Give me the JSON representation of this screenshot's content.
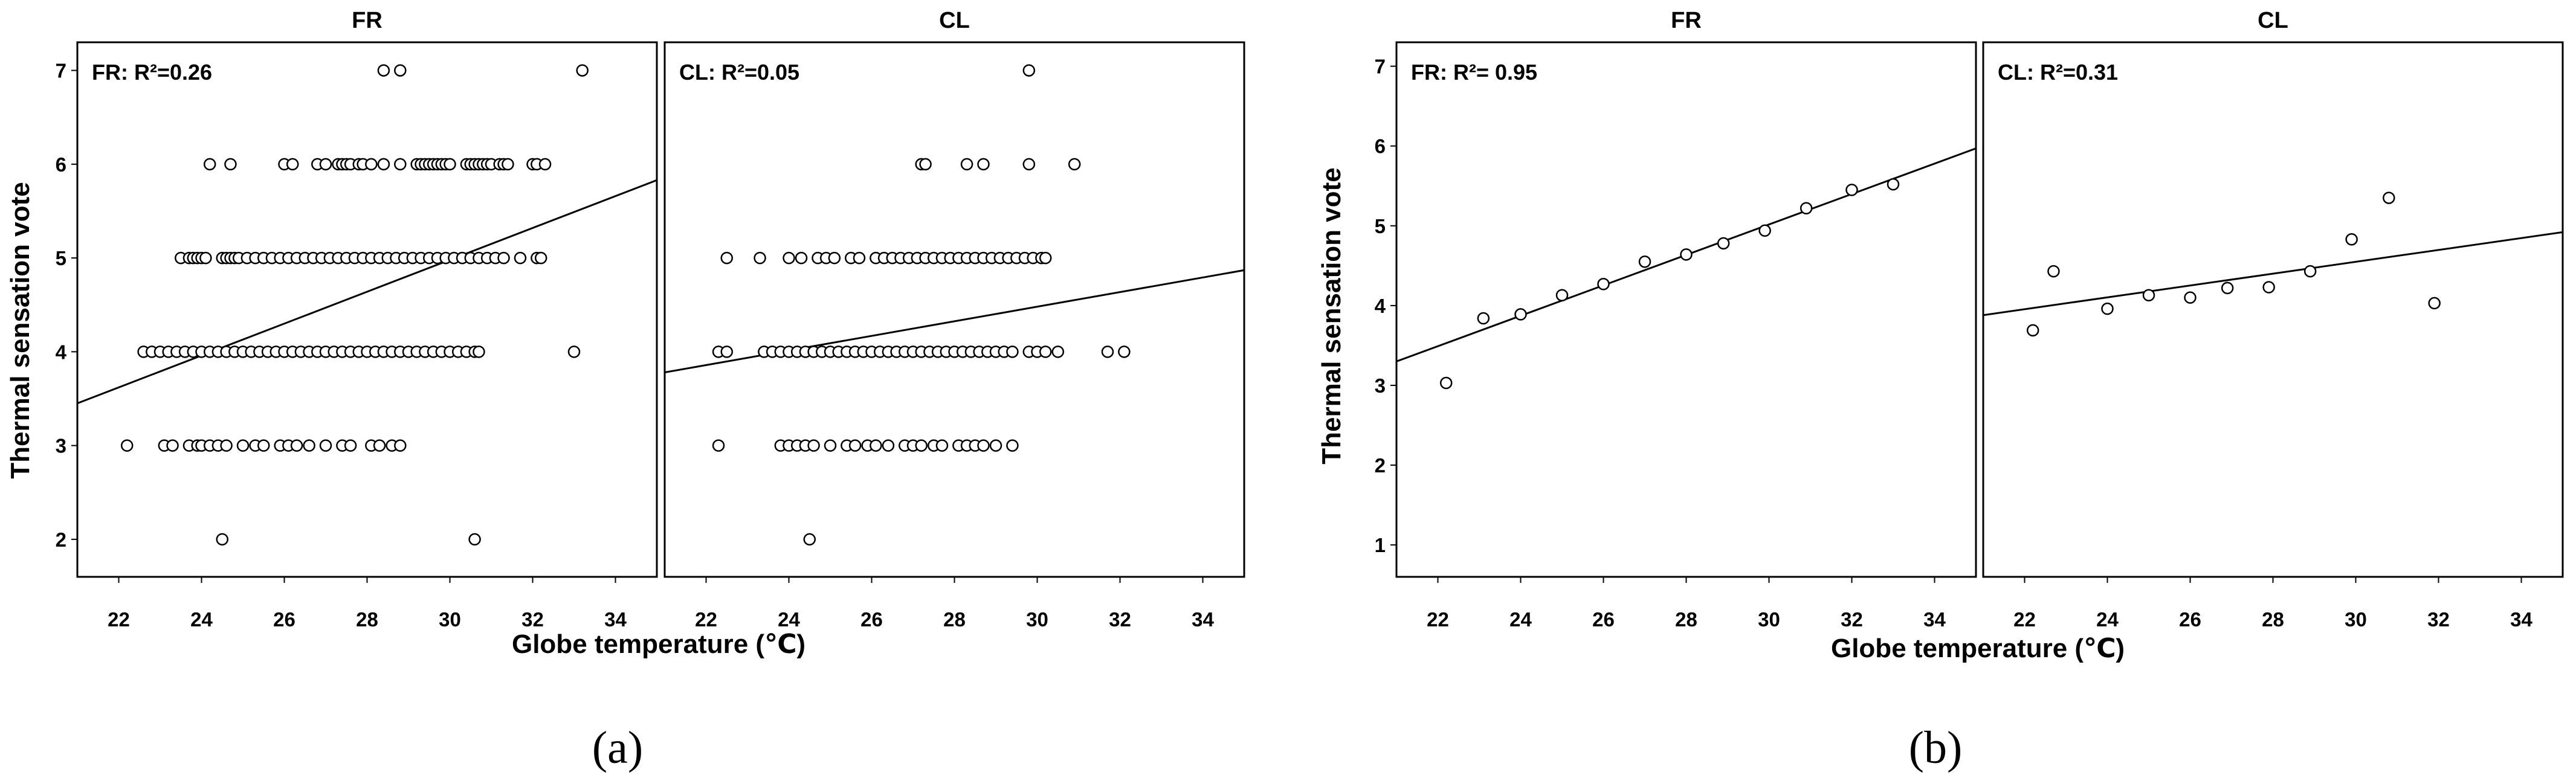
{
  "figure": {
    "caption_a": "(a)",
    "caption_b": "(b)"
  },
  "chart_data": [
    {
      "id": "a",
      "type": "scatter",
      "title": "FR",
      "annotation": "FR: R²=0.26",
      "xlabel": "Globe temperature (℃)",
      "ylabel": "Thermal sensation vote",
      "xlim": [
        21,
        35
      ],
      "ylim": [
        1.6,
        7.3
      ],
      "xticks": [
        "22",
        "24",
        "26",
        "28",
        "30",
        "32",
        "34"
      ],
      "yticks": [
        "2",
        "3",
        "4",
        "5",
        "6",
        "7"
      ],
      "points": [
        [
          28.4,
          7
        ],
        [
          28.8,
          7
        ],
        [
          24.2,
          6
        ],
        [
          24.7,
          6
        ],
        [
          26,
          6
        ],
        [
          26.2,
          6
        ],
        [
          26.8,
          6
        ],
        [
          27,
          6
        ],
        [
          27.3,
          6
        ],
        [
          27.4,
          6
        ],
        [
          27.5,
          6
        ],
        [
          27.6,
          6
        ],
        [
          27.8,
          6
        ],
        [
          27.9,
          6
        ],
        [
          28.1,
          6
        ],
        [
          28.4,
          6
        ],
        [
          28.8,
          6
        ],
        [
          29.2,
          6
        ],
        [
          29.3,
          6
        ],
        [
          29.4,
          6
        ],
        [
          29.5,
          6
        ],
        [
          29.6,
          6
        ],
        [
          29.7,
          6
        ],
        [
          29.8,
          6
        ],
        [
          29.9,
          6
        ],
        [
          30.0,
          6
        ],
        [
          30.4,
          6
        ],
        [
          30.5,
          6
        ],
        [
          30.6,
          6
        ],
        [
          30.7,
          6
        ],
        [
          30.8,
          6
        ],
        [
          30.9,
          6
        ],
        [
          31.0,
          6
        ],
        [
          31.2,
          6
        ],
        [
          31.3,
          6
        ],
        [
          31.4,
          6
        ],
        [
          32.0,
          6
        ],
        [
          32.1,
          6
        ],
        [
          32.3,
          6
        ],
        [
          23.5,
          5
        ],
        [
          23.7,
          5
        ],
        [
          23.8,
          5
        ],
        [
          23.9,
          5
        ],
        [
          24.0,
          5
        ],
        [
          24.1,
          5
        ],
        [
          24.5,
          5
        ],
        [
          24.6,
          5
        ],
        [
          24.7,
          5
        ],
        [
          24.8,
          5
        ],
        [
          24.9,
          5
        ],
        [
          25.1,
          5
        ],
        [
          25.3,
          5
        ],
        [
          25.5,
          5
        ],
        [
          25.7,
          5
        ],
        [
          25.9,
          5
        ],
        [
          26.1,
          5
        ],
        [
          26.3,
          5
        ],
        [
          26.5,
          5
        ],
        [
          26.7,
          5
        ],
        [
          26.9,
          5
        ],
        [
          27.1,
          5
        ],
        [
          27.3,
          5
        ],
        [
          27.5,
          5
        ],
        [
          27.7,
          5
        ],
        [
          27.9,
          5
        ],
        [
          28.1,
          5
        ],
        [
          28.3,
          5
        ],
        [
          28.5,
          5
        ],
        [
          28.7,
          5
        ],
        [
          28.9,
          5
        ],
        [
          29.1,
          5
        ],
        [
          29.3,
          5
        ],
        [
          29.5,
          5
        ],
        [
          29.7,
          5
        ],
        [
          29.9,
          5
        ],
        [
          30.1,
          5
        ],
        [
          30.3,
          5
        ],
        [
          30.5,
          5
        ],
        [
          30.7,
          5
        ],
        [
          30.9,
          5
        ],
        [
          31.1,
          5
        ],
        [
          31.3,
          5
        ],
        [
          31.7,
          5
        ],
        [
          32.1,
          5
        ],
        [
          32.2,
          5
        ],
        [
          22.6,
          4
        ],
        [
          22.8,
          4
        ],
        [
          23.0,
          4
        ],
        [
          23.2,
          4
        ],
        [
          23.4,
          4
        ],
        [
          23.6,
          4
        ],
        [
          23.8,
          4
        ],
        [
          24.0,
          4
        ],
        [
          24.2,
          4
        ],
        [
          24.4,
          4
        ],
        [
          24.6,
          4
        ],
        [
          24.8,
          4
        ],
        [
          25.0,
          4
        ],
        [
          25.2,
          4
        ],
        [
          25.4,
          4
        ],
        [
          25.6,
          4
        ],
        [
          25.8,
          4
        ],
        [
          26.0,
          4
        ],
        [
          26.2,
          4
        ],
        [
          26.4,
          4
        ],
        [
          26.6,
          4
        ],
        [
          26.8,
          4
        ],
        [
          27.0,
          4
        ],
        [
          27.2,
          4
        ],
        [
          27.4,
          4
        ],
        [
          27.6,
          4
        ],
        [
          27.8,
          4
        ],
        [
          28.0,
          4
        ],
        [
          28.2,
          4
        ],
        [
          28.4,
          4
        ],
        [
          28.6,
          4
        ],
        [
          28.8,
          4
        ],
        [
          29.0,
          4
        ],
        [
          29.2,
          4
        ],
        [
          29.4,
          4
        ],
        [
          29.6,
          4
        ],
        [
          29.8,
          4
        ],
        [
          30.0,
          4
        ],
        [
          30.2,
          4
        ],
        [
          30.4,
          4
        ],
        [
          30.6,
          4
        ],
        [
          30.7,
          4
        ],
        [
          33.0,
          4
        ],
        [
          22.2,
          3
        ],
        [
          23.1,
          3
        ],
        [
          23.3,
          3
        ],
        [
          23.7,
          3
        ],
        [
          23.9,
          3
        ],
        [
          24.0,
          3
        ],
        [
          24.2,
          3
        ],
        [
          24.4,
          3
        ],
        [
          24.6,
          3
        ],
        [
          25.0,
          3
        ],
        [
          25.3,
          3
        ],
        [
          25.5,
          3
        ],
        [
          25.9,
          3
        ],
        [
          26.1,
          3
        ],
        [
          26.3,
          3
        ],
        [
          26.6,
          3
        ],
        [
          27.0,
          3
        ],
        [
          27.4,
          3
        ],
        [
          27.6,
          3
        ],
        [
          28.1,
          3
        ],
        [
          28.3,
          3
        ],
        [
          28.6,
          3
        ],
        [
          28.8,
          3
        ],
        [
          24.5,
          2
        ],
        [
          30.6,
          2
        ],
        [
          33.2,
          7
        ]
      ],
      "fit": {
        "x": [
          21,
          35
        ],
        "y": [
          3.45,
          5.83
        ]
      }
    },
    {
      "id": "a",
      "type": "scatter",
      "title": "CL",
      "annotation": "CL: R²=0.05",
      "xlabel": "Globe temperature (℃)",
      "ylabel": "Thermal sensation vote",
      "xlim": [
        21,
        35
      ],
      "ylim": [
        1.6,
        7.3
      ],
      "xticks": [
        "22",
        "24",
        "26",
        "28",
        "30",
        "32",
        "34"
      ],
      "yticks": [
        "2",
        "3",
        "4",
        "5",
        "6",
        "7"
      ],
      "points": [
        [
          29.8,
          7
        ],
        [
          27.2,
          6
        ],
        [
          27.3,
          6
        ],
        [
          28.3,
          6
        ],
        [
          28.7,
          6
        ],
        [
          29.8,
          6
        ],
        [
          30.9,
          6
        ],
        [
          22.5,
          5
        ],
        [
          23.3,
          5
        ],
        [
          24.0,
          5
        ],
        [
          24.3,
          5
        ],
        [
          24.7,
          5
        ],
        [
          24.9,
          5
        ],
        [
          25.1,
          5
        ],
        [
          25.5,
          5
        ],
        [
          25.7,
          5
        ],
        [
          26.1,
          5
        ],
        [
          26.3,
          5
        ],
        [
          26.5,
          5
        ],
        [
          26.7,
          5
        ],
        [
          26.9,
          5
        ],
        [
          27.1,
          5
        ],
        [
          27.3,
          5
        ],
        [
          27.5,
          5
        ],
        [
          27.7,
          5
        ],
        [
          27.9,
          5
        ],
        [
          28.1,
          5
        ],
        [
          28.3,
          5
        ],
        [
          28.5,
          5
        ],
        [
          28.7,
          5
        ],
        [
          28.9,
          5
        ],
        [
          29.1,
          5
        ],
        [
          29.3,
          5
        ],
        [
          29.5,
          5
        ],
        [
          29.7,
          5
        ],
        [
          29.9,
          5
        ],
        [
          30.1,
          5
        ],
        [
          30.2,
          5
        ],
        [
          22.3,
          4
        ],
        [
          22.5,
          4
        ],
        [
          23.4,
          4
        ],
        [
          23.6,
          4
        ],
        [
          23.8,
          4
        ],
        [
          24.0,
          4
        ],
        [
          24.2,
          4
        ],
        [
          24.4,
          4
        ],
        [
          24.6,
          4
        ],
        [
          24.8,
          4
        ],
        [
          25.0,
          4
        ],
        [
          25.2,
          4
        ],
        [
          25.4,
          4
        ],
        [
          25.6,
          4
        ],
        [
          25.8,
          4
        ],
        [
          26.0,
          4
        ],
        [
          26.2,
          4
        ],
        [
          26.4,
          4
        ],
        [
          26.6,
          4
        ],
        [
          26.8,
          4
        ],
        [
          27.0,
          4
        ],
        [
          27.2,
          4
        ],
        [
          27.4,
          4
        ],
        [
          27.6,
          4
        ],
        [
          27.8,
          4
        ],
        [
          28.0,
          4
        ],
        [
          28.2,
          4
        ],
        [
          28.4,
          4
        ],
        [
          28.6,
          4
        ],
        [
          28.8,
          4
        ],
        [
          29.0,
          4
        ],
        [
          29.2,
          4
        ],
        [
          29.4,
          4
        ],
        [
          29.8,
          4
        ],
        [
          30.0,
          4
        ],
        [
          30.2,
          4
        ],
        [
          30.5,
          4
        ],
        [
          31.7,
          4
        ],
        [
          32.1,
          4
        ],
        [
          22.3,
          3
        ],
        [
          23.8,
          3
        ],
        [
          24.0,
          3
        ],
        [
          24.2,
          3
        ],
        [
          24.4,
          3
        ],
        [
          24.6,
          3
        ],
        [
          25.0,
          3
        ],
        [
          25.4,
          3
        ],
        [
          25.6,
          3
        ],
        [
          25.9,
          3
        ],
        [
          26.1,
          3
        ],
        [
          26.4,
          3
        ],
        [
          26.8,
          3
        ],
        [
          27.0,
          3
        ],
        [
          27.2,
          3
        ],
        [
          27.5,
          3
        ],
        [
          27.7,
          3
        ],
        [
          28.1,
          3
        ],
        [
          28.3,
          3
        ],
        [
          28.5,
          3
        ],
        [
          28.7,
          3
        ],
        [
          29.0,
          3
        ],
        [
          29.4,
          3
        ],
        [
          24.5,
          2
        ]
      ],
      "fit": {
        "x": [
          21,
          35
        ],
        "y": [
          3.78,
          4.87
        ]
      }
    },
    {
      "id": "b",
      "type": "scatter",
      "title": "FR",
      "annotation": "FR: R²= 0.95",
      "xlabel": "Globe temperature (℃)",
      "ylabel": "Thermal sensation vote",
      "xlim": [
        21,
        35
      ],
      "ylim": [
        0.6,
        7.3
      ],
      "xticks": [
        "22",
        "24",
        "26",
        "28",
        "30",
        "32",
        "34"
      ],
      "yticks": [
        "1",
        "2",
        "3",
        "4",
        "5",
        "6",
        "7"
      ],
      "points": [
        [
          22.2,
          3.03
        ],
        [
          23.1,
          3.84
        ],
        [
          24.0,
          3.89
        ],
        [
          25.0,
          4.13
        ],
        [
          26.0,
          4.27
        ],
        [
          27.0,
          4.55
        ],
        [
          28.0,
          4.64
        ],
        [
          28.9,
          4.78
        ],
        [
          29.9,
          4.94
        ],
        [
          30.9,
          5.22
        ],
        [
          32.0,
          5.45
        ],
        [
          33.0,
          5.52
        ]
      ],
      "fit": {
        "x": [
          21,
          35
        ],
        "y": [
          3.3,
          5.97
        ]
      }
    },
    {
      "id": "b",
      "type": "scatter",
      "title": "CL",
      "annotation": "CL: R²=0.31",
      "xlabel": "Globe temperature (℃)",
      "ylabel": "Thermal sensation vote",
      "xlim": [
        21,
        35
      ],
      "ylim": [
        0.6,
        7.3
      ],
      "xticks": [
        "22",
        "24",
        "26",
        "28",
        "30",
        "32",
        "34"
      ],
      "yticks": [
        "1",
        "2",
        "3",
        "4",
        "5",
        "6",
        "7"
      ],
      "points": [
        [
          22.2,
          3.69
        ],
        [
          22.7,
          4.43
        ],
        [
          24.0,
          3.96
        ],
        [
          25.0,
          4.13
        ],
        [
          26.0,
          4.1
        ],
        [
          26.9,
          4.22
        ],
        [
          27.9,
          4.23
        ],
        [
          28.9,
          4.43
        ],
        [
          29.9,
          4.83
        ],
        [
          30.8,
          5.35
        ],
        [
          31.9,
          4.03
        ]
      ],
      "fit": {
        "x": [
          21,
          35
        ],
        "y": [
          3.88,
          4.92
        ]
      }
    }
  ]
}
